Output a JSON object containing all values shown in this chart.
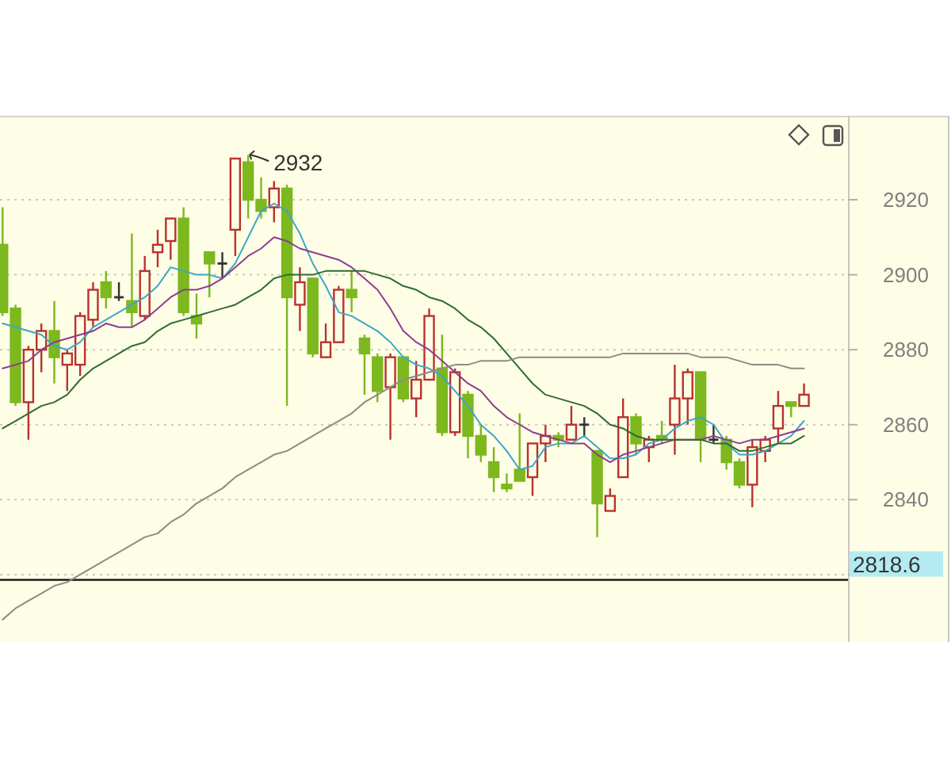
{
  "chart_data": {
    "type": "candlestick",
    "categories": [
      null,
      null,
      null,
      null,
      null,
      null,
      null,
      null,
      null,
      null,
      null,
      null,
      null,
      null,
      null,
      null,
      null,
      null,
      null,
      null,
      null,
      null,
      null,
      null,
      null,
      null,
      null,
      null,
      null,
      null,
      null,
      null,
      null,
      null,
      null,
      null,
      null,
      null,
      null,
      null,
      null,
      null,
      null,
      null,
      null,
      null,
      null,
      null,
      null,
      null,
      null,
      null,
      null,
      null,
      null,
      null,
      null,
      null,
      null,
      null,
      null,
      null,
      null
    ],
    "ohlc": [
      [
        2908,
        2918,
        2889,
        2890
      ],
      [
        2891,
        2892,
        2865,
        2866
      ],
      [
        2866,
        2881,
        2856,
        2880
      ],
      [
        2880,
        2887,
        2874,
        2885
      ],
      [
        2885,
        2893,
        2871,
        2878
      ],
      [
        2876,
        2880,
        2869,
        2879
      ],
      [
        2876,
        2890,
        2873,
        2889
      ],
      [
        2888,
        2898,
        2886,
        2896
      ],
      [
        2898,
        2901,
        2891,
        2894
      ],
      [
        2894,
        2898,
        2893,
        2894
      ],
      [
        2893,
        2911,
        2886,
        2890
      ],
      [
        2889,
        2905,
        2888,
        2901
      ],
      [
        2906,
        2912,
        2902,
        2908
      ],
      [
        2909,
        2915,
        2904,
        2915
      ],
      [
        2915,
        2918,
        2889,
        2890
      ],
      [
        2889,
        2895,
        2883,
        2887
      ],
      [
        2906,
        2906,
        2894,
        2903
      ],
      [
        2903,
        2906,
        2899,
        2903
      ],
      [
        2912,
        2931,
        2905,
        2931
      ],
      [
        2930,
        2932,
        2915,
        2920
      ],
      [
        2920,
        2926,
        2915,
        2917
      ],
      [
        2918,
        2925,
        2914,
        2923
      ],
      [
        2923,
        2924,
        2865,
        2894
      ],
      [
        2892,
        2902,
        2885,
        2898
      ],
      [
        2899,
        2899,
        2878,
        2879
      ],
      [
        2878,
        2887,
        2878,
        2882
      ],
      [
        2882,
        2897,
        2882,
        2896
      ],
      [
        2896,
        2901,
        2890,
        2894
      ],
      [
        2883,
        2884,
        2868,
        2879
      ],
      [
        2878,
        2879,
        2866,
        2869
      ],
      [
        2870,
        2879,
        2856,
        2878
      ],
      [
        2878,
        2878,
        2866,
        2867
      ],
      [
        2867,
        2877,
        2862,
        2872
      ],
      [
        2872,
        2891,
        2872,
        2889
      ],
      [
        2875,
        2884,
        2857,
        2858
      ],
      [
        2858,
        2875,
        2857,
        2874
      ],
      [
        2868,
        2869,
        2851,
        2857
      ],
      [
        2857,
        2860,
        2850,
        2852
      ],
      [
        2850,
        2854,
        2842,
        2846
      ],
      [
        2844,
        2847,
        2842,
        2843
      ],
      [
        2848,
        2863,
        2845,
        2845
      ],
      [
        2846,
        2855,
        2841,
        2855
      ],
      [
        2855,
        2860,
        2850,
        2857
      ],
      [
        2857,
        2858,
        2854,
        2856
      ],
      [
        2856,
        2865,
        2856,
        2860
      ],
      [
        2860,
        2862,
        2857,
        2860
      ],
      [
        2853,
        2853,
        2830,
        2839
      ],
      [
        2837,
        2843,
        2837,
        2841
      ],
      [
        2846,
        2867,
        2846,
        2862
      ],
      [
        2862,
        2863,
        2852,
        2855
      ],
      [
        2854,
        2857,
        2850,
        2856
      ],
      [
        2857,
        2861,
        2855,
        2856
      ],
      [
        2860,
        2876,
        2852,
        2867
      ],
      [
        2867,
        2875,
        2860,
        2874
      ],
      [
        2874,
        2874,
        2850,
        2856
      ],
      [
        2856,
        2860,
        2855,
        2856
      ],
      [
        2856,
        2857,
        2848,
        2850
      ],
      [
        2850,
        2851,
        2843,
        2844
      ],
      [
        2844,
        2856,
        2838,
        2854
      ],
      [
        2853,
        2857,
        2850,
        2856
      ],
      [
        2859,
        2869,
        2855,
        2865
      ],
      [
        2866,
        2866,
        2862,
        2865
      ],
      [
        2865,
        2871,
        2865,
        2868
      ]
    ],
    "colors": [
      "#7cb81e",
      "#7cb81e",
      "#b8322c",
      "#b8322c",
      "#7cb81e",
      "#b8322c",
      "#b8322c",
      "#b8322c",
      "#7cb81e",
      "#333333",
      "#7cb81e",
      "#b8322c",
      "#b8322c",
      "#b8322c",
      "#7cb81e",
      "#7cb81e",
      "#7cb81e",
      "#333333",
      "#b8322c",
      "#7cb81e",
      "#7cb81e",
      "#b8322c",
      "#7cb81e",
      "#b8322c",
      "#7cb81e",
      "#b8322c",
      "#b8322c",
      "#7cb81e",
      "#7cb81e",
      "#7cb81e",
      "#b8322c",
      "#7cb81e",
      "#b8322c",
      "#b8322c",
      "#7cb81e",
      "#b8322c",
      "#7cb81e",
      "#7cb81e",
      "#7cb81e",
      "#7cb81e",
      "#7cb81e",
      "#b8322c",
      "#b8322c",
      "#7cb81e",
      "#b8322c",
      "#333333",
      "#7cb81e",
      "#b8322c",
      "#b8322c",
      "#7cb81e",
      "#b8322c",
      "#7cb81e",
      "#b8322c",
      "#b8322c",
      "#7cb81e",
      "#333333",
      "#7cb81e",
      "#7cb81e",
      "#b8322c",
      "#b8322c",
      "#b8322c",
      "#7cb81e",
      "#b8322c"
    ],
    "series": [
      {
        "type": "line",
        "color": "#3ea6c6",
        "values": [
          2887,
          2886,
          2885,
          2884,
          2881,
          2880,
          2882,
          2886,
          2888,
          2890,
          2892,
          2894,
          2897,
          2902,
          2901,
          2900,
          2900,
          2899,
          2903,
          2910,
          2917,
          2919,
          2917,
          2911,
          2903,
          2897,
          2890,
          2889,
          2887,
          2885,
          2882,
          2878,
          2876,
          2875,
          2873,
          2869,
          2865,
          2860,
          2857,
          2853,
          2848,
          2849,
          2854,
          2855,
          2855,
          2857,
          2854,
          2851,
          2851,
          2852,
          2855,
          2856,
          2859,
          2861,
          2862,
          2860,
          2855,
          2852,
          2852,
          2853,
          2855,
          2857,
          2861
        ]
      },
      {
        "type": "line",
        "color": "#8e3d8e",
        "values": [
          2875,
          2876,
          2877,
          2880,
          2882,
          2883,
          2884,
          2885,
          2887,
          2886,
          2886,
          2888,
          2891,
          2894,
          2896,
          2896,
          2897,
          2899,
          2902,
          2905,
          2907,
          2910,
          2909,
          2907,
          2906,
          2905,
          2904,
          2902,
          2899,
          2896,
          2891,
          2885,
          2882,
          2880,
          2877,
          2874,
          2871,
          2869,
          2865,
          2862,
          2860,
          2858,
          2857,
          2856,
          2855,
          2855,
          2852,
          2850,
          2852,
          2853,
          2854,
          2855,
          2856,
          2856,
          2856,
          2857,
          2856,
          2855,
          2856,
          2856,
          2857,
          2858,
          2859
        ]
      },
      {
        "type": "line",
        "color": "#2f6b30",
        "values": [
          2859,
          2861,
          2863,
          2865,
          2866,
          2868,
          2872,
          2875,
          2877,
          2879,
          2881,
          2882,
          2885,
          2887,
          2888,
          2889,
          2890,
          2891,
          2892,
          2894,
          2896,
          2899,
          2900,
          2900,
          2900,
          2901,
          2901,
          2901,
          2901,
          2900,
          2899,
          2897,
          2896,
          2894,
          2893,
          2891,
          2888,
          2886,
          2883,
          2879,
          2875,
          2871,
          2868,
          2867,
          2866,
          2865,
          2863,
          2860,
          2859,
          2857,
          2856,
          2856,
          2856,
          2856,
          2856,
          2855,
          2855,
          2853,
          2853,
          2854,
          2855,
          2855,
          2857
        ]
      },
      {
        "type": "line",
        "color": "#8c8c84",
        "values": [
          2808,
          2811,
          2813,
          2815,
          2817,
          2818,
          2820,
          2822,
          2824,
          2826,
          2828,
          2830,
          2831,
          2834,
          2836,
          2839,
          2841,
          2843,
          2846,
          2848,
          2850,
          2852,
          2853,
          2855,
          2857,
          2859,
          2861,
          2863,
          2866,
          2868,
          2870,
          2872,
          2873,
          2874,
          2875,
          2876,
          2876,
          2877,
          2877,
          2877,
          2878,
          2878,
          2878,
          2878,
          2878,
          2878,
          2878,
          2878,
          2879,
          2879,
          2879,
          2879,
          2879,
          2879,
          2878,
          2878,
          2878,
          2877,
          2876,
          2876,
          2876,
          2875,
          2875
        ]
      }
    ],
    "ylim": [
      2802,
      2942
    ],
    "yticks": [
      {
        "value": 2820,
        "label": null
      },
      2840,
      2860,
      2880,
      2900,
      2920
    ],
    "grid": "y",
    "tick_labels": "y",
    "ref_lines": [
      {
        "axis": "y",
        "value": 2818.6,
        "label": "2818.6",
        "color": "#1a1a1a"
      }
    ],
    "annotations": [
      "2932"
    ]
  }
}
